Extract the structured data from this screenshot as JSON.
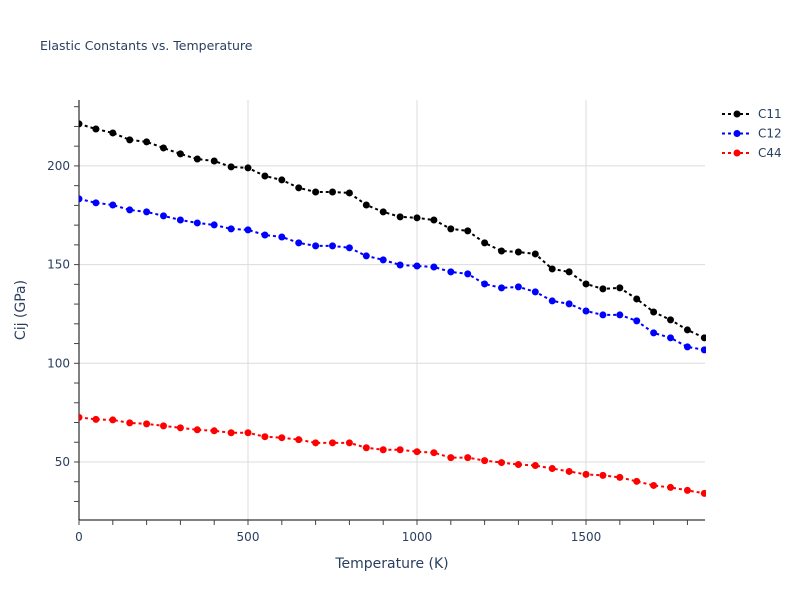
{
  "chart_data": {
    "type": "line",
    "title": "Elastic Constants vs. Temperature",
    "xlabel": "Temperature (K)",
    "ylabel": "Cij (GPa)",
    "xlim": [
      0,
      1852
    ],
    "ylim": [
      20.6,
      233.4
    ],
    "grid": true,
    "legend_position": "top-right",
    "x_ticks": [
      0,
      500,
      1000,
      1500
    ],
    "x_tick_labels": [
      "0",
      "500",
      "1000",
      "1500"
    ],
    "y_ticks": [
      50,
      100,
      150,
      200
    ],
    "y_tick_labels": [
      "50",
      "100",
      "150",
      "200"
    ],
    "x": [
      0,
      50,
      100,
      150,
      200,
      250,
      300,
      350,
      400,
      450,
      500,
      550,
      600,
      650,
      700,
      750,
      800,
      850,
      900,
      950,
      1000,
      1050,
      1100,
      1150,
      1200,
      1250,
      1300,
      1350,
      1400,
      1450,
      1500,
      1550,
      1600,
      1650,
      1700,
      1750,
      1800,
      1850
    ],
    "series": [
      {
        "name": "C11",
        "color": "#000000",
        "values": [
          221.3,
          218.7,
          216.7,
          213.2,
          212.2,
          209.1,
          206.1,
          203.5,
          202.5,
          199.5,
          199.0,
          194.9,
          192.9,
          188.9,
          186.8,
          186.8,
          186.3,
          180.2,
          176.7,
          174.2,
          173.7,
          172.6,
          168.1,
          167.1,
          161.0,
          156.9,
          156.4,
          155.4,
          147.8,
          146.3,
          140.2,
          137.7,
          138.2,
          132.6,
          126.0,
          122.0,
          116.9,
          112.9
        ]
      },
      {
        "name": "C12",
        "color": "#0000ff",
        "values": [
          183.3,
          181.3,
          180.2,
          177.7,
          176.7,
          174.7,
          172.6,
          171.1,
          170.1,
          168.1,
          167.6,
          165.0,
          164.0,
          161.0,
          159.5,
          159.5,
          158.5,
          154.4,
          152.4,
          149.8,
          149.3,
          148.8,
          146.3,
          145.3,
          140.2,
          138.2,
          138.7,
          136.2,
          131.6,
          130.1,
          126.5,
          124.5,
          124.5,
          121.5,
          115.4,
          112.9,
          108.3,
          106.8
        ]
      },
      {
        "name": "C44",
        "color": "#ff0000",
        "values": [
          72.6,
          71.6,
          71.3,
          69.8,
          69.3,
          68.3,
          67.3,
          66.3,
          65.8,
          64.8,
          64.8,
          62.8,
          62.3,
          61.3,
          59.7,
          59.7,
          59.7,
          57.2,
          56.2,
          56.2,
          55.2,
          54.7,
          52.2,
          52.2,
          50.7,
          49.7,
          48.7,
          48.2,
          46.7,
          45.2,
          43.7,
          43.2,
          42.2,
          40.2,
          38.1,
          37.1,
          35.6,
          34.1
        ]
      }
    ],
    "colors": {
      "text": "#2a3f5f",
      "grid": "#dcdcdc",
      "axis": "#000000"
    }
  }
}
